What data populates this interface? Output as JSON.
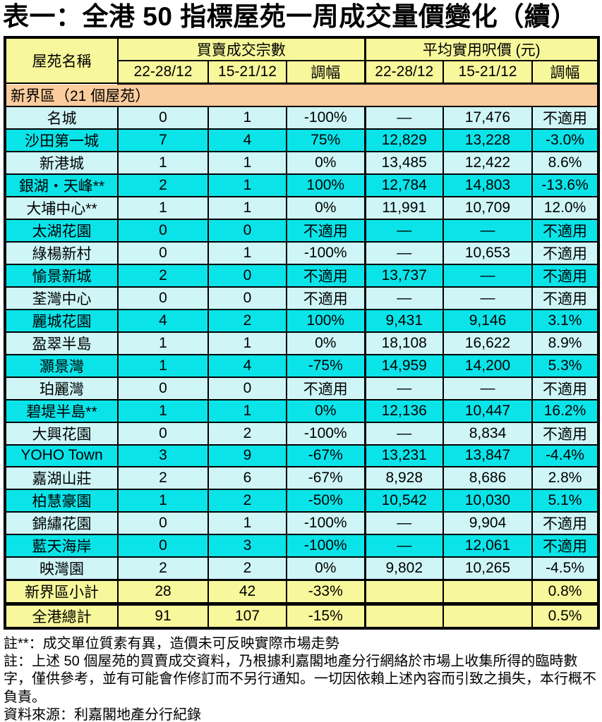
{
  "title": "表一：全港 50 指標屋苑一周成交量價變化（續）",
  "colors": {
    "header_yellow": "#F7F79B",
    "section_orange": "#FBCC9C",
    "row_light": "#CFF5F7",
    "row_bright": "#0AE4E9",
    "border": "#000000"
  },
  "table": {
    "header": {
      "name_col": "屋苑名稱",
      "volume_group": "買賣成交宗數",
      "price_group": "平均實用呎價 (元)",
      "sub_columns": [
        "22-28/12",
        "15-21/12",
        "調幅",
        "22-28/12",
        "15-21/12",
        "調幅"
      ]
    },
    "section": "新界區（21 個屋苑）",
    "rows": [
      {
        "name": "名城",
        "vol_22_28": "0",
        "vol_15_21": "1",
        "vol_chg": "-100%",
        "psf_22_28": "—",
        "psf_15_21": "17,476",
        "psf_chg": "不適用"
      },
      {
        "name": "沙田第一城",
        "vol_22_28": "7",
        "vol_15_21": "4",
        "vol_chg": "75%",
        "psf_22_28": "12,829",
        "psf_15_21": "13,228",
        "psf_chg": "-3.0%"
      },
      {
        "name": "新港城",
        "vol_22_28": "1",
        "vol_15_21": "1",
        "vol_chg": "0%",
        "psf_22_28": "13,485",
        "psf_15_21": "12,422",
        "psf_chg": "8.6%"
      },
      {
        "name": "銀湖・天峰**",
        "vol_22_28": "2",
        "vol_15_21": "1",
        "vol_chg": "100%",
        "psf_22_28": "12,784",
        "psf_15_21": "14,803",
        "psf_chg": "-13.6%"
      },
      {
        "name": "大埔中心**",
        "vol_22_28": "1",
        "vol_15_21": "1",
        "vol_chg": "0%",
        "psf_22_28": "11,991",
        "psf_15_21": "10,709",
        "psf_chg": "12.0%"
      },
      {
        "name": "太湖花園",
        "vol_22_28": "0",
        "vol_15_21": "0",
        "vol_chg": "不適用",
        "psf_22_28": "—",
        "psf_15_21": "—",
        "psf_chg": "不適用"
      },
      {
        "name": "綠楊新村",
        "vol_22_28": "0",
        "vol_15_21": "1",
        "vol_chg": "-100%",
        "psf_22_28": "—",
        "psf_15_21": "10,653",
        "psf_chg": "不適用"
      },
      {
        "name": "愉景新城",
        "vol_22_28": "2",
        "vol_15_21": "0",
        "vol_chg": "不適用",
        "psf_22_28": "13,737",
        "psf_15_21": "—",
        "psf_chg": "不適用"
      },
      {
        "name": "荃灣中心",
        "vol_22_28": "0",
        "vol_15_21": "0",
        "vol_chg": "不適用",
        "psf_22_28": "—",
        "psf_15_21": "—",
        "psf_chg": "不適用"
      },
      {
        "name": "麗城花園",
        "vol_22_28": "4",
        "vol_15_21": "2",
        "vol_chg": "100%",
        "psf_22_28": "9,431",
        "psf_15_21": "9,146",
        "psf_chg": "3.1%"
      },
      {
        "name": "盈翠半島",
        "vol_22_28": "1",
        "vol_15_21": "1",
        "vol_chg": "0%",
        "psf_22_28": "18,108",
        "psf_15_21": "16,622",
        "psf_chg": "8.9%"
      },
      {
        "name": "灝景灣",
        "vol_22_28": "1",
        "vol_15_21": "4",
        "vol_chg": "-75%",
        "psf_22_28": "14,959",
        "psf_15_21": "14,200",
        "psf_chg": "5.3%"
      },
      {
        "name": "珀麗灣",
        "vol_22_28": "0",
        "vol_15_21": "0",
        "vol_chg": "不適用",
        "psf_22_28": "—",
        "psf_15_21": "—",
        "psf_chg": "不適用"
      },
      {
        "name": "碧堤半島**",
        "vol_22_28": "1",
        "vol_15_21": "1",
        "vol_chg": "0%",
        "psf_22_28": "12,136",
        "psf_15_21": "10,447",
        "psf_chg": "16.2%"
      },
      {
        "name": "大興花園",
        "vol_22_28": "0",
        "vol_15_21": "2",
        "vol_chg": "-100%",
        "psf_22_28": "—",
        "psf_15_21": "8,834",
        "psf_chg": "不適用"
      },
      {
        "name": "YOHO Town",
        "vol_22_28": "3",
        "vol_15_21": "9",
        "vol_chg": "-67%",
        "psf_22_28": "13,231",
        "psf_15_21": "13,847",
        "psf_chg": "-4.4%"
      },
      {
        "name": "嘉湖山莊",
        "vol_22_28": "2",
        "vol_15_21": "6",
        "vol_chg": "-67%",
        "psf_22_28": "8,928",
        "psf_15_21": "8,686",
        "psf_chg": "2.8%"
      },
      {
        "name": "柏慧豪園",
        "vol_22_28": "1",
        "vol_15_21": "2",
        "vol_chg": "-50%",
        "psf_22_28": "10,542",
        "psf_15_21": "10,030",
        "psf_chg": "5.1%"
      },
      {
        "name": "錦繡花園",
        "vol_22_28": "0",
        "vol_15_21": "1",
        "vol_chg": "-100%",
        "psf_22_28": "—",
        "psf_15_21": "9,904",
        "psf_chg": "不適用"
      },
      {
        "name": "藍天海岸",
        "vol_22_28": "0",
        "vol_15_21": "3",
        "vol_chg": "-100%",
        "psf_22_28": "—",
        "psf_15_21": "12,061",
        "psf_chg": "不適用"
      },
      {
        "name": "映灣園",
        "vol_22_28": "2",
        "vol_15_21": "2",
        "vol_chg": "0%",
        "psf_22_28": "9,802",
        "psf_15_21": "10,265",
        "psf_chg": "-4.5%"
      }
    ],
    "subtotal": {
      "name": "新界區小計",
      "vol_22_28": "28",
      "vol_15_21": "42",
      "vol_chg": "-33%",
      "psf_22_28": "",
      "psf_15_21": "",
      "psf_chg": "0.8%"
    },
    "total": {
      "name": "全港總計",
      "vol_22_28": "91",
      "vol_15_21": "107",
      "vol_chg": "-15%",
      "psf_22_28": "",
      "psf_15_21": "",
      "psf_chg": "0.5%"
    }
  },
  "notes": [
    "註**：成交單位質素有異，造價未可反映實際市場走勢",
    "註：上述 50 個屋苑的買賣成交資料，乃根據利嘉閣地產分行網絡於市場上收集所得的臨時數字，僅供參考，並有可能會作修訂而不另行通知。一切因依賴上述內容而引致之損失，本行概不負責。",
    "資料來源：利嘉閣地產分行紀錄"
  ]
}
